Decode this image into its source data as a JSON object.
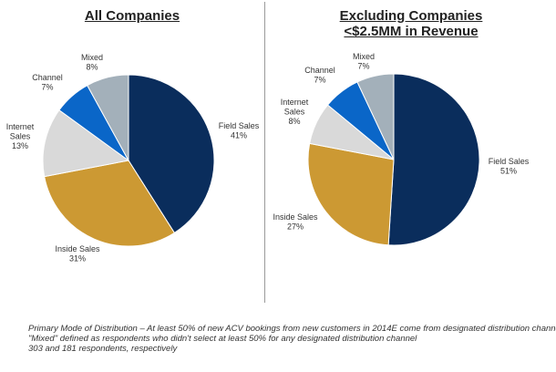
{
  "chart_data": [
    {
      "type": "pie",
      "title": "All Companies",
      "slices": [
        {
          "label": "Field Sales",
          "value": 41,
          "value_label": "41%",
          "color": "#0a2d5c"
        },
        {
          "label": "Inside Sales",
          "value": 31,
          "value_label": "31%",
          "color": "#cc9933"
        },
        {
          "label": "Internet Sales",
          "value": 13,
          "value_label": "13%",
          "color": "#d9d9d9"
        },
        {
          "label": "Channel",
          "value": 7,
          "value_label": "7%",
          "color": "#0a66c8"
        },
        {
          "label": "Mixed",
          "value": 8,
          "value_label": "8%",
          "color": "#a3b0ba"
        }
      ]
    },
    {
      "type": "pie",
      "title_lines": [
        "Excluding Companies",
        "<$2.5MM in Revenue"
      ],
      "slices": [
        {
          "label": "Field Sales",
          "value": 51,
          "value_label": "51%",
          "color": "#0a2d5c"
        },
        {
          "label": "Inside Sales",
          "value": 27,
          "value_label": "27%",
          "color": "#cc9933"
        },
        {
          "label": "Internet Sales",
          "value": 8,
          "value_label": "8%",
          "color": "#d9d9d9"
        },
        {
          "label": "Channel",
          "value": 7,
          "value_label": "7%",
          "color": "#0a66c8"
        },
        {
          "label": "Mixed",
          "value": 7,
          "value_label": "7%",
          "color": "#a3b0ba"
        }
      ]
    }
  ],
  "footnote": {
    "line1": "Primary Mode of Distribution – At least 50% of new ACV bookings from new customers in 2014E come from designated distribution channel;",
    "line2": "\"Mixed\" defined as respondents who didn't select at least 50% for any designated distribution channel",
    "line3": "303 and 181 respondents, respectively"
  }
}
